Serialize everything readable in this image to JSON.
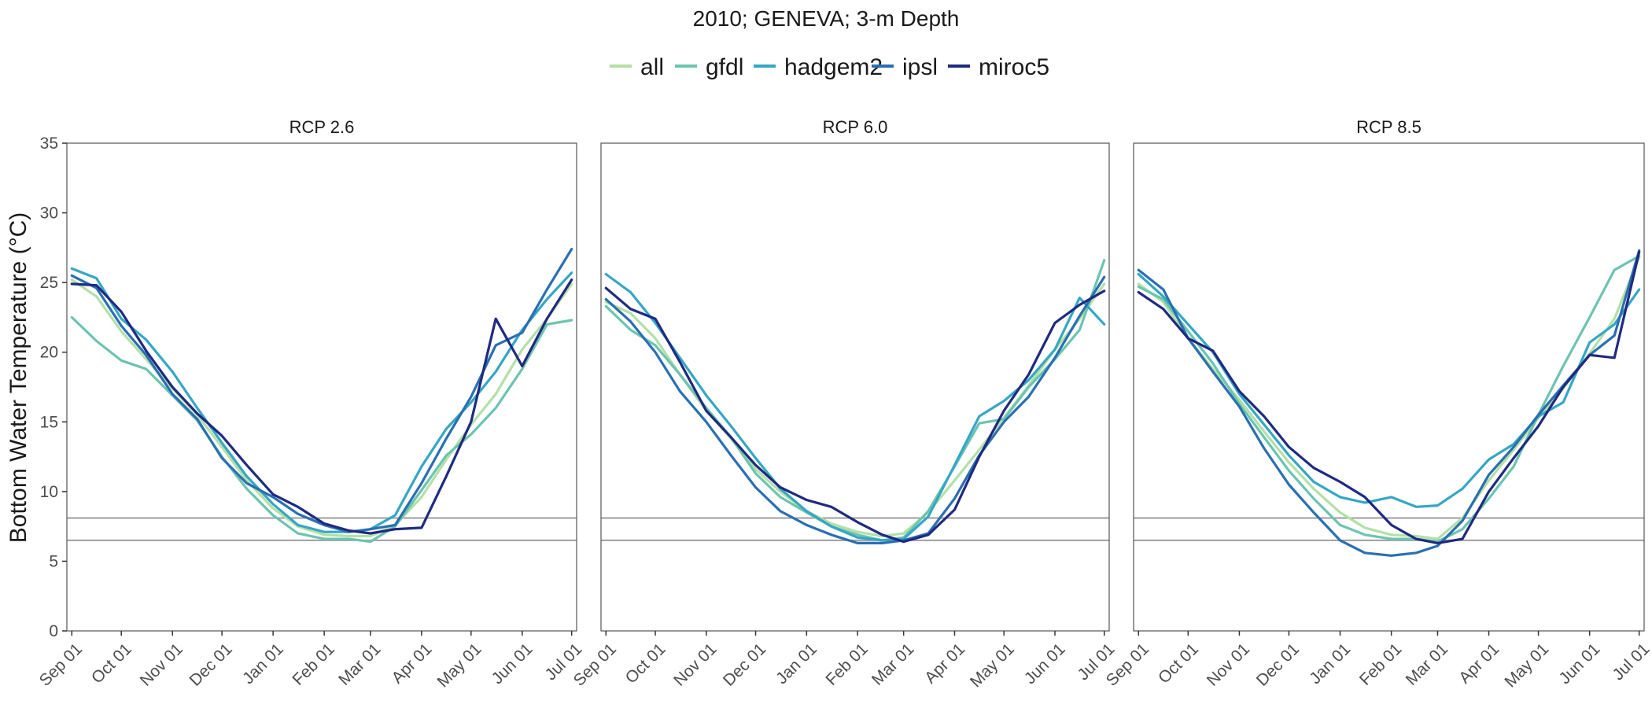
{
  "chart_data": {
    "type": "line",
    "title": "2010; GENEVA; 3-m Depth",
    "ylabel": "Bottom Water Temperature (°C)",
    "xlabel": "",
    "ylim": [
      0,
      35
    ],
    "y_ticks": [
      0,
      5,
      10,
      15,
      20,
      25,
      30,
      35
    ],
    "x_ticks": [
      "Sep 01",
      "Oct 01",
      "Nov 01",
      "Dec 01",
      "Jan 01",
      "Feb 01",
      "Mar 01",
      "Apr 01",
      "May 01",
      "Jun 01",
      "Jul 01"
    ],
    "x_dates": [
      "2010-09-01",
      "2010-10-01",
      "2010-11-01",
      "2010-12-01",
      "2011-01-01",
      "2011-02-01",
      "2011-03-01",
      "2011-04-01",
      "2011-05-01",
      "2011-06-01",
      "2011-07-01"
    ],
    "xlim": [
      "2010-08-29",
      "2011-07-04"
    ],
    "hlines": [
      6.5,
      8.1
    ],
    "legend_position": "top",
    "grid": false,
    "legend": [
      {
        "name": "all",
        "color": "#b3e0a6"
      },
      {
        "name": "gfdl",
        "color": "#6cc4b0"
      },
      {
        "name": "hadgem2",
        "color": "#36a6c5"
      },
      {
        "name": "ipsl",
        "color": "#2a6fb2"
      },
      {
        "name": "miroc5",
        "color": "#1f2a80"
      }
    ],
    "panels": [
      {
        "label": "RCP 2.6",
        "series": [
          {
            "name": "all",
            "x": [
              "2010-09-01",
              "2010-09-16",
              "2010-10-01",
              "2010-10-16",
              "2010-11-01",
              "2010-11-16",
              "2010-12-01",
              "2010-12-16",
              "2011-01-01",
              "2011-01-16",
              "2011-02-01",
              "2011-02-16",
              "2011-03-01",
              "2011-03-16",
              "2011-04-01",
              "2011-04-16",
              "2011-05-01",
              "2011-05-16",
              "2011-06-01",
              "2011-06-16",
              "2011-07-01"
            ],
            "values": [
              25.2,
              24.0,
              21.5,
              19.5,
              17.4,
              15.5,
              13.2,
              10.8,
              8.8,
              7.5,
              6.9,
              6.8,
              6.8,
              7.6,
              9.6,
              12.3,
              14.8,
              17.0,
              20.2,
              22.4,
              24.9
            ]
          },
          {
            "name": "gfdl",
            "x": [
              "2010-09-01",
              "2010-09-16",
              "2010-10-01",
              "2010-10-16",
              "2010-11-01",
              "2010-11-16",
              "2010-12-01",
              "2010-12-16",
              "2011-01-01",
              "2011-01-16",
              "2011-02-01",
              "2011-02-16",
              "2011-03-01",
              "2011-03-16",
              "2011-04-01",
              "2011-04-16",
              "2011-05-01",
              "2011-05-16",
              "2011-06-01",
              "2011-06-16",
              "2011-07-01"
            ],
            "values": [
              22.5,
              20.8,
              19.4,
              18.8,
              16.9,
              15.1,
              12.5,
              10.2,
              8.3,
              7.0,
              6.6,
              6.6,
              6.4,
              7.5,
              10.1,
              12.6,
              14.1,
              16.0,
              18.8,
              22.0,
              22.3
            ]
          },
          {
            "name": "hadgem2",
            "x": [
              "2010-09-01",
              "2010-09-16",
              "2010-10-01",
              "2010-10-16",
              "2010-11-01",
              "2010-11-16",
              "2010-12-01",
              "2010-12-16",
              "2011-01-01",
              "2011-01-16",
              "2011-02-01",
              "2011-02-16",
              "2011-03-01",
              "2011-03-16",
              "2011-04-01",
              "2011-04-16",
              "2011-05-01",
              "2011-05-16",
              "2011-06-01",
              "2011-06-16",
              "2011-07-01"
            ],
            "values": [
              26.0,
              25.3,
              22.4,
              20.9,
              18.6,
              16.0,
              13.5,
              11.1,
              9.1,
              7.6,
              7.1,
              7.1,
              7.3,
              8.3,
              11.8,
              14.5,
              16.4,
              18.6,
              21.6,
              23.8,
              25.7
            ]
          },
          {
            "name": "ipsl",
            "x": [
              "2010-09-01",
              "2010-09-16",
              "2010-10-01",
              "2010-10-16",
              "2010-11-01",
              "2010-11-16",
              "2010-12-01",
              "2010-12-16",
              "2011-01-01",
              "2011-01-16",
              "2011-02-01",
              "2011-02-16",
              "2011-03-01",
              "2011-03-16",
              "2011-04-01",
              "2011-04-16",
              "2011-05-01",
              "2011-05-16",
              "2011-06-01",
              "2011-06-16",
              "2011-07-01"
            ],
            "values": [
              25.5,
              24.6,
              21.9,
              19.8,
              17.0,
              15.2,
              12.4,
              10.6,
              9.6,
              8.4,
              7.6,
              7.1,
              7.3,
              7.6,
              10.6,
              13.8,
              16.8,
              20.5,
              21.4,
              24.5,
              27.4
            ]
          },
          {
            "name": "miroc5",
            "x": [
              "2010-09-01",
              "2010-09-16",
              "2010-10-01",
              "2010-10-16",
              "2010-11-01",
              "2010-11-16",
              "2010-12-01",
              "2010-12-16",
              "2011-01-01",
              "2011-01-16",
              "2011-02-01",
              "2011-02-16",
              "2011-03-01",
              "2011-03-16",
              "2011-04-01",
              "2011-04-16",
              "2011-05-01",
              "2011-05-16",
              "2011-06-01",
              "2011-06-16",
              "2011-07-01"
            ],
            "values": [
              24.9,
              24.8,
              22.9,
              20.1,
              17.5,
              15.6,
              14.0,
              11.9,
              9.8,
              8.9,
              7.7,
              7.2,
              7.0,
              7.3,
              7.4,
              11.1,
              15.0,
              22.4,
              19.0,
              22.4,
              25.2
            ]
          }
        ]
      },
      {
        "label": "RCP 6.0",
        "series": [
          {
            "name": "all",
            "x": [
              "2010-09-01",
              "2010-09-16",
              "2010-10-01",
              "2010-10-16",
              "2010-11-01",
              "2010-11-16",
              "2010-12-01",
              "2010-12-16",
              "2011-01-01",
              "2011-01-16",
              "2011-02-01",
              "2011-02-16",
              "2011-03-01",
              "2011-03-16",
              "2011-04-01",
              "2011-04-16",
              "2011-05-01",
              "2011-05-16",
              "2011-06-01",
              "2011-06-16",
              "2011-07-01"
            ],
            "values": [
              23.6,
              22.8,
              21.0,
              18.4,
              15.8,
              13.8,
              11.6,
              10.0,
              8.6,
              7.7,
              7.1,
              6.8,
              7.0,
              8.5,
              10.8,
              13.0,
              15.3,
              17.6,
              20.2,
              22.4,
              24.9
            ]
          },
          {
            "name": "gfdl",
            "x": [
              "2010-09-01",
              "2010-09-16",
              "2010-10-01",
              "2010-10-16",
              "2010-11-01",
              "2010-11-16",
              "2010-12-01",
              "2010-12-16",
              "2011-01-01",
              "2011-01-16",
              "2011-02-01",
              "2011-02-16",
              "2011-03-01",
              "2011-03-16",
              "2011-04-01",
              "2011-04-16",
              "2011-05-01",
              "2011-05-16",
              "2011-06-01",
              "2011-06-16",
              "2011-07-01"
            ],
            "values": [
              23.3,
              21.6,
              20.5,
              18.4,
              16.0,
              13.9,
              11.3,
              9.6,
              8.5,
              7.5,
              6.9,
              6.5,
              6.7,
              8.6,
              11.8,
              14.9,
              15.2,
              17.5,
              19.5,
              21.6,
              26.6
            ]
          },
          {
            "name": "hadgem2",
            "x": [
              "2010-09-01",
              "2010-09-16",
              "2010-10-01",
              "2010-10-16",
              "2010-11-01",
              "2010-11-16",
              "2010-12-01",
              "2010-12-16",
              "2011-01-01",
              "2011-01-16",
              "2011-02-01",
              "2011-02-16",
              "2011-03-01",
              "2011-03-16",
              "2011-04-01",
              "2011-04-16",
              "2011-05-01",
              "2011-05-16",
              "2011-06-01",
              "2011-06-16",
              "2011-07-01"
            ],
            "values": [
              25.6,
              24.3,
              22.1,
              19.6,
              16.9,
              14.7,
              12.4,
              10.2,
              8.6,
              7.5,
              6.7,
              6.5,
              6.6,
              8.2,
              11.9,
              15.4,
              16.5,
              18.0,
              20.2,
              23.9,
              22.0
            ]
          },
          {
            "name": "ipsl",
            "x": [
              "2010-09-01",
              "2010-09-16",
              "2010-10-01",
              "2010-10-16",
              "2010-11-01",
              "2010-11-16",
              "2010-12-01",
              "2010-12-16",
              "2011-01-01",
              "2011-01-16",
              "2011-02-01",
              "2011-02-16",
              "2011-03-01",
              "2011-03-16",
              "2011-04-01",
              "2011-04-16",
              "2011-05-01",
              "2011-05-16",
              "2011-06-01",
              "2011-06-16",
              "2011-07-01"
            ],
            "values": [
              23.8,
              22.2,
              20.0,
              17.2,
              15.0,
              12.6,
              10.3,
              8.6,
              7.6,
              6.9,
              6.3,
              6.3,
              6.5,
              7.0,
              9.5,
              12.6,
              15.0,
              16.8,
              19.6,
              22.6,
              25.4
            ]
          },
          {
            "name": "miroc5",
            "x": [
              "2010-09-01",
              "2010-09-16",
              "2010-10-01",
              "2010-10-16",
              "2010-11-01",
              "2010-11-16",
              "2010-12-01",
              "2010-12-16",
              "2011-01-01",
              "2011-01-16",
              "2011-02-01",
              "2011-02-16",
              "2011-03-01",
              "2011-03-16",
              "2011-04-01",
              "2011-04-16",
              "2011-05-01",
              "2011-05-16",
              "2011-06-01",
              "2011-06-16",
              "2011-07-01"
            ],
            "values": [
              24.6,
              23.1,
              22.4,
              19.3,
              15.8,
              13.9,
              11.9,
              10.3,
              9.4,
              8.9,
              7.8,
              6.9,
              6.4,
              6.9,
              8.7,
              12.5,
              15.8,
              18.4,
              22.1,
              23.4,
              24.4
            ]
          }
        ]
      },
      {
        "label": "RCP 8.5",
        "series": [
          {
            "name": "all",
            "x": [
              "2010-09-01",
              "2010-09-16",
              "2010-10-01",
              "2010-10-16",
              "2010-11-01",
              "2010-11-16",
              "2010-12-01",
              "2010-12-16",
              "2011-01-01",
              "2011-01-16",
              "2011-02-01",
              "2011-02-16",
              "2011-03-01",
              "2011-03-16",
              "2011-04-01",
              "2011-04-16",
              "2011-05-01",
              "2011-05-16",
              "2011-06-01",
              "2011-06-16",
              "2011-07-01"
            ],
            "values": [
              24.9,
              23.6,
              21.0,
              18.8,
              16.6,
              14.3,
              12.1,
              10.2,
              8.5,
              7.4,
              6.9,
              6.8,
              6.6,
              8.1,
              10.8,
              13.0,
              15.3,
              17.4,
              19.9,
              22.4,
              26.8
            ]
          },
          {
            "name": "gfdl",
            "x": [
              "2010-09-01",
              "2010-09-16",
              "2010-10-01",
              "2010-10-16",
              "2010-11-01",
              "2010-11-16",
              "2010-12-01",
              "2010-12-16",
              "2011-01-01",
              "2011-01-16",
              "2011-02-01",
              "2011-02-16",
              "2011-03-01",
              "2011-03-16",
              "2011-04-01",
              "2011-04-16",
              "2011-05-01",
              "2011-05-16",
              "2011-06-01",
              "2011-06-16",
              "2011-07-01"
            ],
            "values": [
              24.7,
              23.8,
              21.5,
              19.2,
              16.3,
              13.9,
              11.5,
              9.5,
              7.6,
              6.9,
              6.6,
              6.6,
              6.4,
              7.3,
              9.5,
              11.8,
              15.5,
              19.0,
              22.5,
              25.9,
              26.9
            ]
          },
          {
            "name": "hadgem2",
            "x": [
              "2010-09-01",
              "2010-09-16",
              "2010-10-01",
              "2010-10-16",
              "2010-11-01",
              "2010-11-16",
              "2010-12-01",
              "2010-12-16",
              "2011-01-01",
              "2011-01-16",
              "2011-02-01",
              "2011-02-16",
              "2011-03-01",
              "2011-03-16",
              "2011-04-01",
              "2011-04-16",
              "2011-05-01",
              "2011-05-16",
              "2011-06-01",
              "2011-06-16",
              "2011-07-01"
            ],
            "values": [
              25.6,
              24.0,
              22.0,
              20.0,
              17.0,
              14.8,
              12.6,
              10.7,
              9.6,
              9.2,
              9.6,
              8.9,
              9.0,
              10.2,
              12.3,
              13.4,
              15.4,
              16.4,
              20.7,
              22.0,
              24.5
            ]
          },
          {
            "name": "ipsl",
            "x": [
              "2010-09-01",
              "2010-09-16",
              "2010-10-01",
              "2010-10-16",
              "2010-11-01",
              "2010-11-16",
              "2010-12-01",
              "2010-12-16",
              "2011-01-01",
              "2011-01-16",
              "2011-02-01",
              "2011-02-16",
              "2011-03-01",
              "2011-03-16",
              "2011-04-01",
              "2011-04-16",
              "2011-05-01",
              "2011-05-16",
              "2011-06-01",
              "2011-06-16",
              "2011-07-01"
            ],
            "values": [
              25.9,
              24.5,
              21.0,
              18.6,
              16.1,
              13.1,
              10.5,
              8.5,
              6.5,
              5.6,
              5.4,
              5.6,
              6.1,
              7.9,
              11.2,
              13.2,
              15.5,
              17.6,
              19.8,
              21.2,
              27.3
            ]
          },
          {
            "name": "miroc5",
            "x": [
              "2010-09-01",
              "2010-09-16",
              "2010-10-01",
              "2010-10-16",
              "2010-11-01",
              "2010-11-16",
              "2010-12-01",
              "2010-12-16",
              "2011-01-01",
              "2011-01-16",
              "2011-02-01",
              "2011-02-16",
              "2011-03-01",
              "2011-03-16",
              "2011-04-01",
              "2011-04-16",
              "2011-05-01",
              "2011-05-16",
              "2011-06-01",
              "2011-06-16",
              "2011-07-01"
            ],
            "values": [
              24.3,
              23.1,
              21.0,
              20.1,
              17.2,
              15.4,
              13.2,
              11.7,
              10.7,
              9.6,
              7.6,
              6.6,
              6.3,
              6.6,
              10.0,
              12.4,
              14.7,
              17.5,
              19.8,
              19.6,
              27.2
            ]
          }
        ]
      }
    ]
  }
}
